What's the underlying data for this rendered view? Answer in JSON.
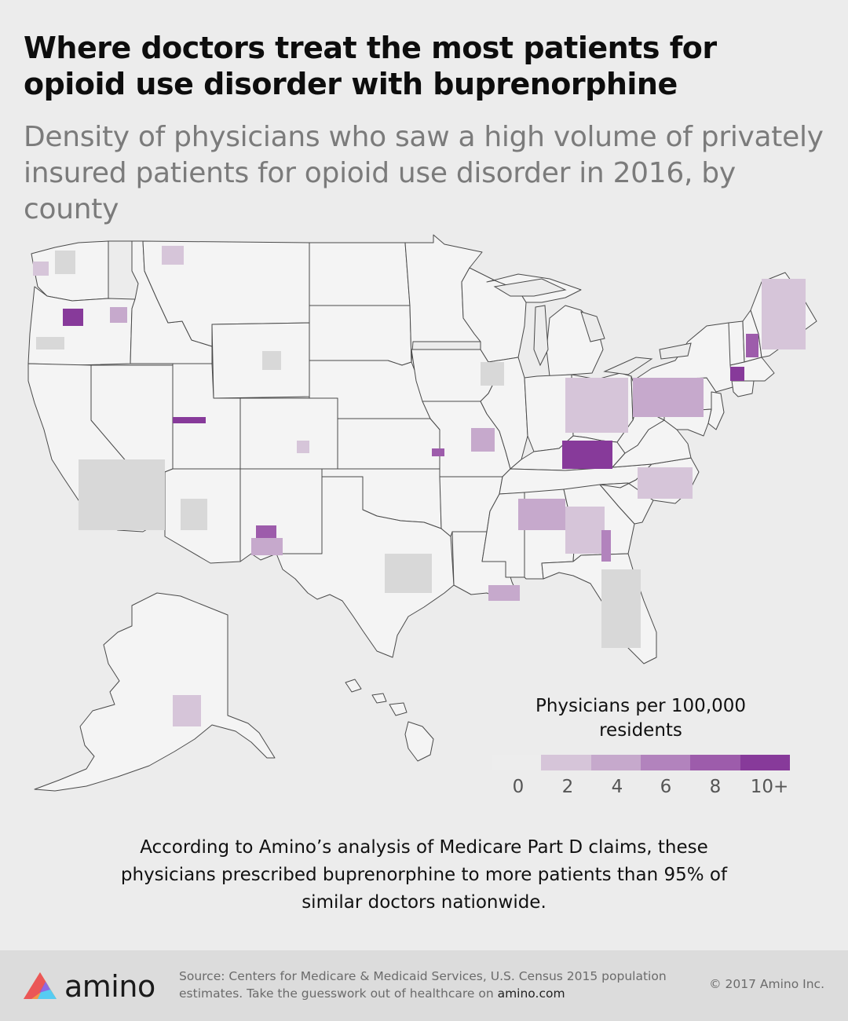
{
  "header": {
    "title": "Where doctors treat the most patients for opioid use disorder with buprenorphine",
    "subtitle": "Density of physicians who saw a high volume of privately insured patients for opioid use disorder in 2016, by county"
  },
  "legend": {
    "title": "Physicians per 100,000 residents",
    "ticks": [
      "0",
      "2",
      "4",
      "6",
      "8",
      "10+"
    ],
    "colors": [
      "#ededed",
      "#d6c5d9",
      "#c6a9cc",
      "#b283bd",
      "#9d5cab",
      "#873a9a"
    ]
  },
  "map": {
    "region": "United States, by county",
    "state_fill": "#f4f4f4",
    "state_stroke": "#4a4a4a",
    "no_data_fill": "#d8d8d8"
  },
  "note": {
    "text": "According to Amino’s analysis of Medicare Part D claims, these physicians prescribed buprenorphine to more patients than 95% of similar doctors nationwide."
  },
  "footer": {
    "logo_text": "amino",
    "source_text": "Source: Centers for Medicare & Medicaid Services, U.S. Census 2015 population estimates. Take the guesswork out of healthcare on",
    "source_link": "amino.com",
    "copyright": "© 2017 Amino Inc."
  }
}
